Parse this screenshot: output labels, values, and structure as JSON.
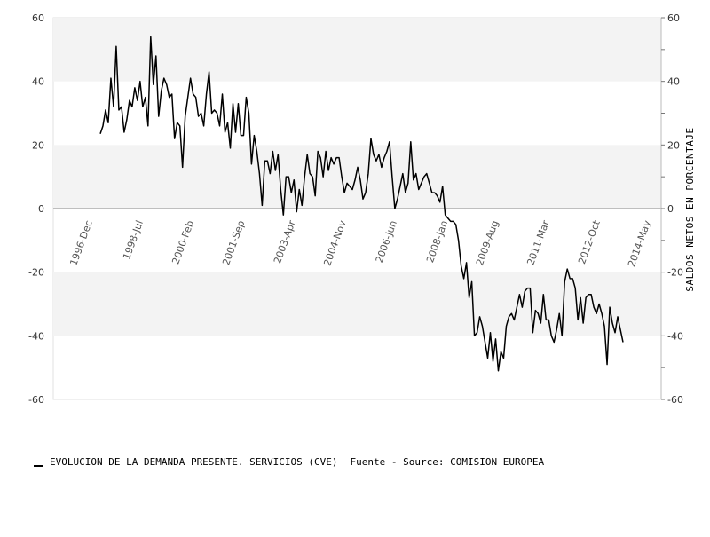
{
  "chart_data": {
    "type": "line",
    "title": "",
    "ylabel": "SALDOS NETOS EN PORCENTAJE",
    "ylim": [
      -60,
      60
    ],
    "y_ticks": [
      60,
      40,
      20,
      0,
      -20,
      -40,
      -60
    ],
    "grid": "alternating horizontal bands",
    "x_tick_labels": [
      "1996-Dec",
      "1998-Jul",
      "2000-Feb",
      "2001-Sep",
      "2003-Apr",
      "2004-Nov",
      "2006-Jun",
      "2008-Jan",
      "2009-Aug",
      "2011-Mar",
      "2012-Oct",
      "2014-May"
    ],
    "x_start": "1996-Dec",
    "legend_position": "bottom",
    "colors": {
      "line": "#000000",
      "band": "#f3f3f3",
      "zero_line": "#888888"
    },
    "series": [
      {
        "name": "EVOLUCION DE LA DEMANDA PRESENTE. SERVICIOS (CVE)",
        "values": [
          23.5,
          26,
          31,
          27,
          41,
          32,
          51,
          31,
          32,
          24,
          28,
          34,
          32,
          38,
          34,
          40,
          32,
          35,
          26,
          54,
          39,
          48,
          29,
          37,
          41,
          39,
          35,
          36,
          22,
          27,
          26,
          13,
          29,
          35,
          41,
          36,
          35,
          29,
          30,
          26,
          36,
          43,
          30,
          31,
          30,
          26,
          36,
          24,
          27,
          19,
          33,
          24,
          33,
          23,
          23,
          35,
          30,
          14,
          23,
          18,
          11,
          1,
          15,
          15,
          11,
          18,
          12,
          17,
          6,
          -2,
          10,
          10,
          5,
          9,
          -1,
          6,
          1,
          10,
          17,
          11,
          10,
          4,
          18,
          16,
          10,
          18,
          12,
          16,
          14,
          16,
          16,
          10,
          5,
          8,
          7,
          6,
          9,
          13,
          9,
          3,
          5,
          11,
          22,
          17,
          15,
          17,
          13,
          16,
          18,
          21,
          10,
          0,
          3,
          7,
          11,
          5,
          8,
          21,
          9,
          11,
          6,
          8,
          10,
          11,
          8,
          5,
          5,
          4,
          2,
          7,
          -2,
          -3,
          -4,
          -4,
          -5,
          -10,
          -18,
          -22,
          -17,
          -28,
          -23,
          -40,
          -39,
          -34,
          -37,
          -42,
          -47,
          -39,
          -48,
          -41,
          -51,
          -45,
          -47,
          -37,
          -34,
          -33,
          -35,
          -31,
          -27,
          -31,
          -26,
          -25,
          -25,
          -39,
          -32,
          -33,
          -36,
          -27,
          -35,
          -35,
          -40,
          -42,
          -38,
          -33,
          -40,
          -23,
          -19,
          -22,
          -22,
          -25,
          -35,
          -28,
          -36,
          -28,
          -27,
          -27,
          -31,
          -33,
          -30,
          -33,
          -37,
          -49,
          -31,
          -36,
          -39,
          -34,
          -38,
          -42
        ]
      }
    ]
  },
  "legend": {
    "series_name": "EVOLUCION DE LA DEMANDA PRESENTE. SERVICIOS (CVE)",
    "source": "Fuente - Source: COMISION EUROPEA"
  }
}
